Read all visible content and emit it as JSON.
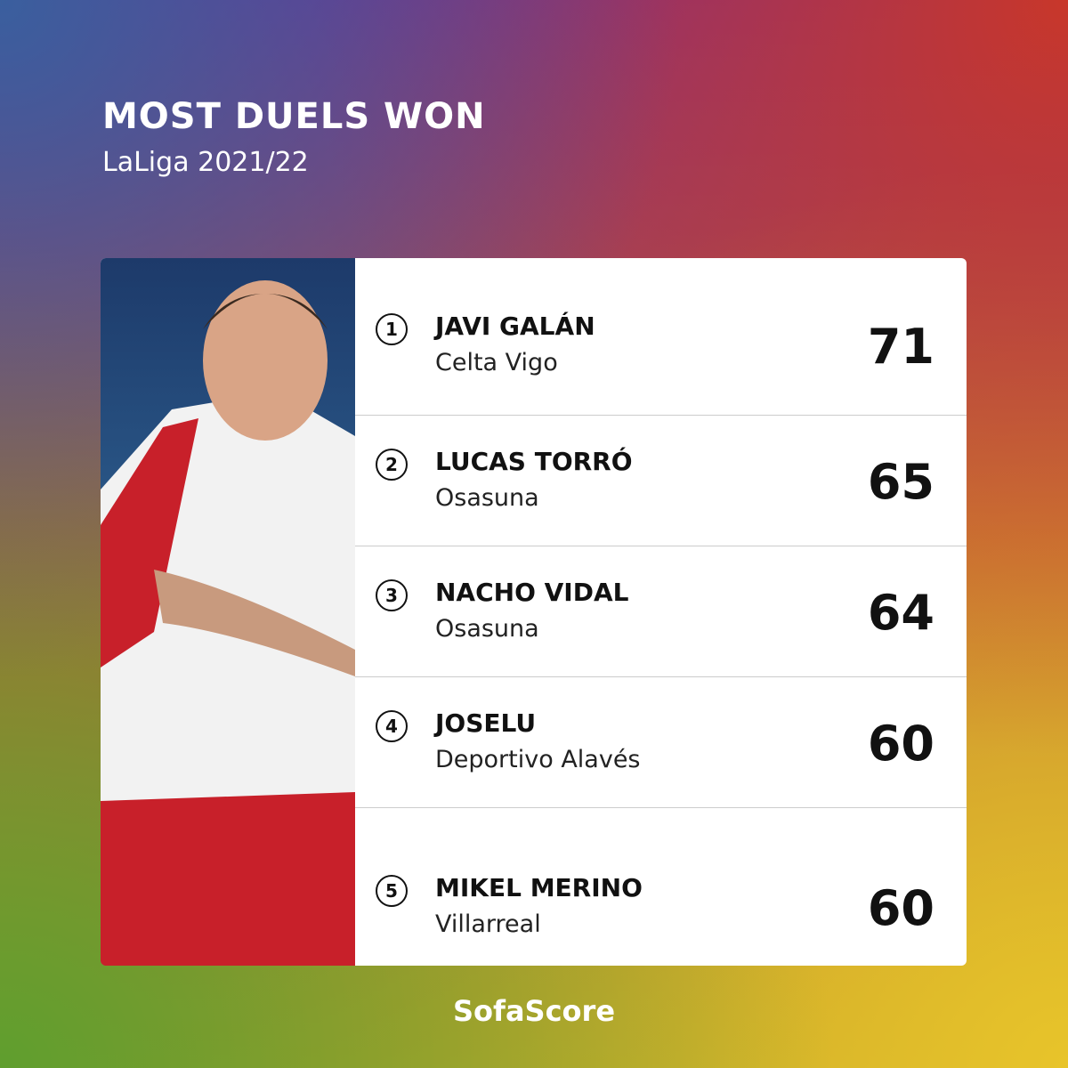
{
  "header": {
    "title": "MOST DUELS WON",
    "subtitle": "LaLiga 2021/22"
  },
  "rows": [
    {
      "rank": 1,
      "name": "JAVI GALÁN",
      "team": "Celta Vigo",
      "value": 71
    },
    {
      "rank": 2,
      "name": "LUCAS TORRÓ",
      "team": "Osasuna",
      "value": 65
    },
    {
      "rank": 3,
      "name": "NACHO VIDAL",
      "team": "Osasuna",
      "value": 64
    },
    {
      "rank": 4,
      "name": "JOSELU",
      "team": "Deportivo Alavés",
      "value": 60
    },
    {
      "rank": 5,
      "name": "MIKEL MERINO",
      "team": "Villarreal",
      "value": 60
    }
  ],
  "brand": "SofaScore"
}
